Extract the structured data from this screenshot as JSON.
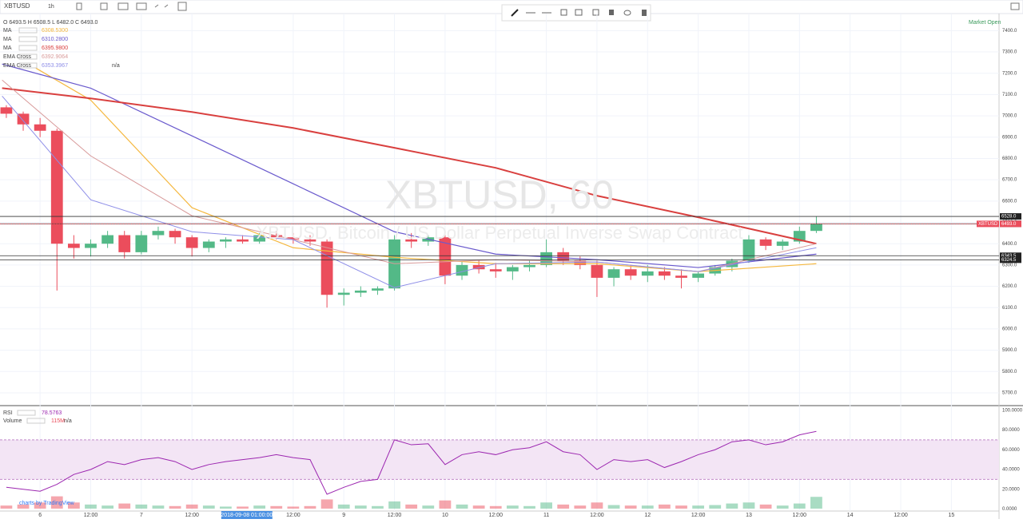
{
  "toolbar": {
    "symbol": "XBTUSD",
    "interval": "1h"
  },
  "legend": {
    "ohlc": "O 6493.5 H 6508.5 L 6482.0 C 6493.0",
    "market_status": "Market Open",
    "na": "n/a"
  },
  "watermark": {
    "title": "XBTUSD, 60",
    "subtitle": "XBTUSD, Bitcoin / US Dollar Perpetual Inverse Swap Contract"
  },
  "branding": "charts by TradingView",
  "chart_data": [
    {
      "type": "candlestick",
      "x": [
        -8,
        -4,
        0,
        4,
        8,
        12,
        16,
        20,
        24,
        28,
        32,
        36,
        40,
        44,
        48,
        52,
        56,
        60,
        64,
        68,
        72,
        76,
        80,
        84,
        88,
        92,
        96,
        100,
        104,
        108,
        112,
        116,
        120,
        124,
        128,
        132,
        136,
        140,
        144,
        148,
        152,
        156,
        160,
        164,
        168,
        172,
        176,
        180,
        184
      ],
      "open": [
        7040,
        7010,
        6960,
        6930,
        6400,
        6380,
        6400,
        6440,
        6360,
        6440,
        6460,
        6430,
        6380,
        6410,
        6420,
        6410,
        6440,
        6430,
        6420,
        6410,
        6160,
        6170,
        6180,
        6190,
        6420,
        6410,
        6430,
        6250,
        6300,
        6280,
        6270,
        6290,
        6300,
        6360,
        6320,
        6300,
        6240,
        6280,
        6250,
        6270,
        6250,
        6240,
        6260,
        6290,
        6320,
        6420,
        6390,
        6410,
        6460
      ],
      "high": [
        7050,
        7020,
        6990,
        6940,
        6440,
        6420,
        6460,
        6460,
        6460,
        6480,
        6470,
        6440,
        6420,
        6430,
        6440,
        6450,
        6460,
        6450,
        6440,
        6420,
        6190,
        6200,
        6200,
        6440,
        6450,
        6440,
        6440,
        6320,
        6320,
        6310,
        6300,
        6320,
        6420,
        6380,
        6340,
        6320,
        6290,
        6300,
        6300,
        6290,
        6280,
        6270,
        6300,
        6330,
        6440,
        6430,
        6420,
        6480,
        6528
      ],
      "low": [
        6990,
        6930,
        6900,
        6180,
        6330,
        6340,
        6380,
        6330,
        6350,
        6420,
        6400,
        6340,
        6360,
        6380,
        6400,
        6400,
        6420,
        6400,
        6390,
        6100,
        6110,
        6150,
        6160,
        6180,
        6380,
        6390,
        6210,
        6230,
        6260,
        6240,
        6230,
        6270,
        6290,
        6300,
        6280,
        6150,
        6200,
        6230,
        6220,
        6230,
        6190,
        6220,
        6250,
        6270,
        6310,
        6370,
        6370,
        6400,
        6450
      ],
      "close": [
        7010,
        6960,
        6930,
        6400,
        6380,
        6400,
        6440,
        6360,
        6440,
        6460,
        6430,
        6380,
        6410,
        6420,
        6410,
        6440,
        6430,
        6420,
        6410,
        6160,
        6170,
        6180,
        6190,
        6420,
        6410,
        6430,
        6250,
        6300,
        6280,
        6270,
        6290,
        6300,
        6360,
        6320,
        6300,
        6240,
        6280,
        6250,
        6270,
        6250,
        6240,
        6260,
        6290,
        6320,
        6420,
        6390,
        6410,
        6460,
        6493
      ],
      "up_color": "#53b987",
      "down_color": "#eb4d5c",
      "xlim": [
        -9.5,
        227.3
      ],
      "xticks": [
        {
          "value": 0,
          "label": "6"
        },
        {
          "value": 12,
          "label": "12:00"
        },
        {
          "value": 24,
          "label": "7"
        },
        {
          "value": 36,
          "label": "12:00"
        },
        {
          "value": 60,
          "label": "12:00"
        },
        {
          "value": 72,
          "label": "9"
        },
        {
          "value": 84,
          "label": "12:00"
        },
        {
          "value": 96,
          "label": "10"
        },
        {
          "value": 108,
          "label": "12:00"
        },
        {
          "value": 120,
          "label": "11"
        },
        {
          "value": 132,
          "label": "12:00"
        },
        {
          "value": 144,
          "label": "12"
        },
        {
          "value": 156,
          "label": "12:00"
        },
        {
          "value": 168,
          "label": "13"
        },
        {
          "value": 180,
          "label": "12:00"
        },
        {
          "value": 192,
          "label": "14"
        },
        {
          "value": 204,
          "label": "12:00"
        },
        {
          "value": 216,
          "label": "15"
        }
      ],
      "crosshair": {
        "value": 49,
        "label": "2018-09-08 01:00:00"
      },
      "ylim": [
        5640,
        7480
      ],
      "yticks": [
        {
          "value": 7400,
          "label": "7400.0"
        },
        {
          "value": 7300,
          "label": "7300.0"
        },
        {
          "value": 7200,
          "label": "7200.0"
        },
        {
          "value": 7100,
          "label": "7100.0"
        },
        {
          "value": 7000,
          "label": "7000.0"
        },
        {
          "value": 6900,
          "label": "6900.0"
        },
        {
          "value": 6800,
          "label": "6800.0"
        },
        {
          "value": 6700,
          "label": "6700.0"
        },
        {
          "value": 6600,
          "label": "6600.0"
        },
        {
          "value": 6500,
          "label": "6500.0"
        },
        {
          "value": 6400,
          "label": "6400.0"
        },
        {
          "value": 6300,
          "label": "6300.0"
        },
        {
          "value": 6200,
          "label": "6200.0"
        },
        {
          "value": 6100,
          "label": "6100.0"
        },
        {
          "value": 6000,
          "label": "6000.0"
        },
        {
          "value": 5900,
          "label": "5900.0"
        },
        {
          "value": 5800,
          "label": "5800.0"
        },
        {
          "value": 5700,
          "label": "5700.0"
        }
      ],
      "grid": true,
      "overlays": [
        {
          "name": "MA",
          "color": "#f5b840",
          "width": 1.2,
          "value_label": "6308.5300",
          "x": [
            -1,
            12,
            36,
            60,
            84,
            108,
            132,
            156,
            184
          ],
          "values": [
            7224,
            7074,
            6569,
            6381,
            6336,
            6306,
            6306,
            6269,
            6306
          ]
        },
        {
          "name": "MA",
          "color": "#6a5acd",
          "width": 1.2,
          "value_label": "6310.2800",
          "x": [
            -9,
            12,
            36,
            60,
            84,
            108,
            132,
            156,
            184
          ],
          "values": [
            7243,
            7130,
            6906,
            6681,
            6456,
            6351,
            6325,
            6288,
            6351
          ]
        },
        {
          "name": "MA",
          "color": "#d9403f",
          "width": 2,
          "value_label": "6395.9800",
          "x": [
            -9,
            12,
            36,
            60,
            84,
            108,
            132,
            156,
            184
          ],
          "values": [
            7130,
            7082,
            7018,
            6943,
            6850,
            6756,
            6625,
            6524,
            6400
          ]
        },
        {
          "name": "EMA Cross",
          "color": "#d89a9a",
          "width": 1,
          "value_label": "6392.9064",
          "x": [
            -9,
            12,
            36,
            60,
            84,
            108,
            132,
            156,
            184
          ],
          "values": [
            7168,
            6812,
            6531,
            6419,
            6306,
            6325,
            6314,
            6269,
            6400
          ]
        },
        {
          "name": "EMA Cross",
          "color": "#8f8fe8",
          "width": 1,
          "value_label": "6353.3967",
          "x": [
            -9,
            12,
            36,
            60,
            84,
            108,
            132,
            156,
            184
          ],
          "values": [
            7093,
            6606,
            6456,
            6419,
            6194,
            6306,
            6314,
            6269,
            6381
          ]
        }
      ],
      "price_lines": [
        {
          "value": 6528.0,
          "label": "6528.0"
        },
        {
          "value": 6493.5,
          "label": "6493.5"
        },
        {
          "value": 6343.5,
          "label": "6343.5"
        },
        {
          "value": 6324.5,
          "label": "6324.5"
        }
      ],
      "last_price": {
        "name": "XBTUSD",
        "value": 6493.0,
        "label": "6493.0",
        "color": "#eb4d5c"
      }
    },
    {
      "type": "line",
      "name": "RSI",
      "value_label": "78.5763",
      "color": "#9c27b0",
      "values": [
        22,
        20,
        18,
        25,
        35,
        40,
        48,
        45,
        50,
        52,
        48,
        40,
        45,
        48,
        50,
        52,
        55,
        52,
        50,
        15,
        22,
        28,
        30,
        70,
        65,
        66,
        45,
        55,
        58,
        55,
        60,
        62,
        68,
        58,
        55,
        40,
        50,
        48,
        50,
        42,
        48,
        55,
        60,
        68,
        70,
        65,
        68,
        75,
        78.5763
      ],
      "band": [
        30,
        70
      ],
      "band_color": "#f3e5f5",
      "ylim": [
        -2,
        103
      ],
      "yticks": [
        {
          "value": 100,
          "label": "100.0000"
        },
        {
          "value": 80,
          "label": "80.0000"
        },
        {
          "value": 60,
          "label": "60.0000"
        },
        {
          "value": 40,
          "label": "40.0000"
        },
        {
          "value": 20,
          "label": "20.0000"
        },
        {
          "value": 0,
          "label": "0.0000"
        }
      ]
    },
    {
      "type": "bar",
      "name": "Volume",
      "value_labels": [
        "115M"
      ],
      "values": [
        30,
        40,
        60,
        120,
        60,
        40,
        30,
        50,
        40,
        30,
        25,
        40,
        30,
        20,
        20,
        30,
        25,
        20,
        25,
        90,
        40,
        30,
        25,
        70,
        40,
        30,
        80,
        40,
        30,
        25,
        30,
        25,
        60,
        40,
        30,
        60,
        35,
        30,
        30,
        40,
        30,
        30,
        35,
        50,
        60,
        40,
        30,
        50,
        115
      ],
      "ylim": [
        0,
        600
      ]
    }
  ]
}
